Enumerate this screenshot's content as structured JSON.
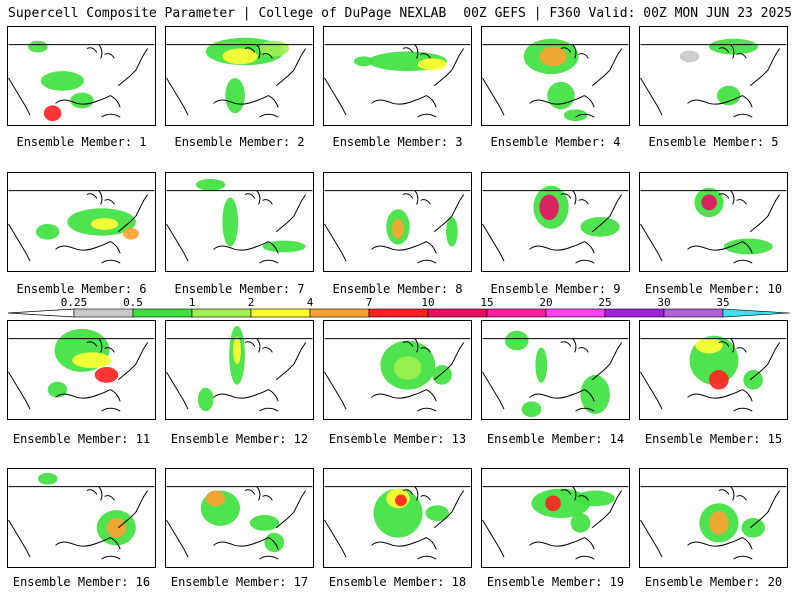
{
  "header": {
    "left_title": "Supercell Composite Parameter | College of DuPage NEXLAB",
    "right_title": "00Z GEFS | F360 Valid: 00Z MON JUN 23 2025"
  },
  "caption_prefix": "Ensemble Member: ",
  "colors": {
    "0.25": "#c8c8c8",
    "0.5": "#3de03d",
    "1": "#a0f050",
    "2": "#ffff33",
    "4": "#ffa030",
    "7": "#ff2020",
    "10": "#e81060",
    "15": "#ff20a0",
    "20": "#ff40ff",
    "25": "#a020e0",
    "30": "#b060d8",
    "35": "#40e0f0"
  },
  "legend": {
    "labels": [
      "0.25",
      "0.5",
      "1",
      "2",
      "4",
      "7",
      "10",
      "15",
      "20",
      "25",
      "30",
      "35"
    ],
    "colors": [
      "#c8c8c8",
      "#3de03d",
      "#a0f050",
      "#ffff33",
      "#ffa030",
      "#ff2020",
      "#e81060",
      "#ff20a0",
      "#ff40ff",
      "#a020e0",
      "#b060d8",
      "#40e0f0"
    ]
  },
  "members": [
    {
      "label": "1",
      "blobs": [
        [
          30,
          20,
          10,
          6,
          "#3de03d"
        ],
        [
          55,
          55,
          22,
          10,
          "#3de03d"
        ],
        [
          45,
          88,
          9,
          8,
          "#ff2020"
        ],
        [
          75,
          75,
          12,
          8,
          "#3de03d"
        ]
      ]
    },
    {
      "label": "2",
      "blobs": [
        [
          80,
          25,
          40,
          14,
          "#3de03d"
        ],
        [
          75,
          30,
          18,
          8,
          "#ffff33"
        ],
        [
          70,
          70,
          10,
          18,
          "#3de03d"
        ],
        [
          110,
          22,
          15,
          8,
          "#a0f050"
        ]
      ]
    },
    {
      "label": "3",
      "blobs": [
        [
          85,
          35,
          40,
          10,
          "#3de03d"
        ],
        [
          110,
          38,
          15,
          6,
          "#ffff33"
        ],
        [
          40,
          35,
          10,
          5,
          "#3de03d"
        ]
      ]
    },
    {
      "label": "4",
      "blobs": [
        [
          70,
          30,
          28,
          18,
          "#3de03d"
        ],
        [
          72,
          30,
          14,
          10,
          "#ffa030"
        ],
        [
          80,
          70,
          14,
          14,
          "#3de03d"
        ],
        [
          95,
          90,
          12,
          6,
          "#3de03d"
        ]
      ]
    },
    {
      "label": "5",
      "blobs": [
        [
          95,
          20,
          25,
          8,
          "#3de03d"
        ],
        [
          90,
          70,
          12,
          10,
          "#3de03d"
        ],
        [
          50,
          30,
          10,
          6,
          "#c8c8c8"
        ]
      ]
    },
    {
      "label": "6",
      "blobs": [
        [
          95,
          50,
          35,
          14,
          "#3de03d"
        ],
        [
          98,
          52,
          14,
          6,
          "#ffff33"
        ],
        [
          40,
          60,
          12,
          8,
          "#3de03d"
        ],
        [
          125,
          62,
          8,
          6,
          "#ffa030"
        ]
      ]
    },
    {
      "label": "7",
      "blobs": [
        [
          45,
          12,
          15,
          6,
          "#3de03d"
        ],
        [
          65,
          50,
          8,
          25,
          "#3de03d"
        ],
        [
          120,
          75,
          22,
          6,
          "#3de03d"
        ]
      ]
    },
    {
      "label": "8",
      "blobs": [
        [
          75,
          55,
          12,
          18,
          "#3de03d"
        ],
        [
          75,
          57,
          6,
          10,
          "#ffa030"
        ],
        [
          130,
          60,
          6,
          15,
          "#3de03d"
        ]
      ]
    },
    {
      "label": "9",
      "blobs": [
        [
          70,
          35,
          18,
          22,
          "#3de03d"
        ],
        [
          68,
          35,
          10,
          13,
          "#e81060"
        ],
        [
          120,
          55,
          20,
          10,
          "#3de03d"
        ]
      ]
    },
    {
      "label": "10",
      "blobs": [
        [
          70,
          30,
          15,
          15,
          "#3de03d"
        ],
        [
          70,
          30,
          8,
          8,
          "#e81060"
        ],
        [
          110,
          75,
          25,
          8,
          "#3de03d"
        ]
      ]
    },
    {
      "label": "11",
      "blobs": [
        [
          75,
          30,
          28,
          22,
          "#3de03d"
        ],
        [
          85,
          40,
          20,
          8,
          "#ffff33"
        ],
        [
          100,
          55,
          12,
          8,
          "#ff2020"
        ],
        [
          50,
          70,
          10,
          8,
          "#3de03d"
        ]
      ]
    },
    {
      "label": "12",
      "blobs": [
        [
          72,
          35,
          8,
          30,
          "#3de03d"
        ],
        [
          72,
          30,
          4,
          14,
          "#ffff33"
        ],
        [
          40,
          80,
          8,
          12,
          "#3de03d"
        ]
      ]
    },
    {
      "label": "13",
      "blobs": [
        [
          85,
          45,
          28,
          25,
          "#3de03d"
        ],
        [
          85,
          48,
          14,
          12,
          "#a0f050"
        ],
        [
          120,
          55,
          10,
          10,
          "#3de03d"
        ]
      ]
    },
    {
      "label": "14",
      "blobs": [
        [
          35,
          20,
          12,
          10,
          "#3de03d"
        ],
        [
          60,
          45,
          6,
          18,
          "#3de03d"
        ],
        [
          115,
          75,
          15,
          20,
          "#3de03d"
        ],
        [
          50,
          90,
          10,
          8,
          "#3de03d"
        ]
      ]
    },
    {
      "label": "15",
      "blobs": [
        [
          75,
          40,
          25,
          25,
          "#3de03d"
        ],
        [
          70,
          25,
          14,
          8,
          "#ffff33"
        ],
        [
          80,
          60,
          10,
          10,
          "#ff2020"
        ],
        [
          115,
          60,
          10,
          10,
          "#3de03d"
        ]
      ]
    },
    {
      "label": "16",
      "blobs": [
        [
          110,
          60,
          20,
          18,
          "#3de03d"
        ],
        [
          110,
          60,
          10,
          10,
          "#ffa030"
        ],
        [
          40,
          10,
          10,
          6,
          "#3de03d"
        ]
      ]
    },
    {
      "label": "17",
      "blobs": [
        [
          55,
          40,
          20,
          18,
          "#3de03d"
        ],
        [
          50,
          30,
          10,
          8,
          "#ffa030"
        ],
        [
          100,
          55,
          15,
          8,
          "#3de03d"
        ],
        [
          110,
          75,
          10,
          10,
          "#3de03d"
        ]
      ]
    },
    {
      "label": "18",
      "blobs": [
        [
          75,
          45,
          25,
          25,
          "#3de03d"
        ],
        [
          75,
          30,
          12,
          10,
          "#ffff33"
        ],
        [
          78,
          32,
          6,
          6,
          "#ff2020"
        ],
        [
          115,
          45,
          12,
          8,
          "#3de03d"
        ]
      ]
    },
    {
      "label": "19",
      "blobs": [
        [
          80,
          35,
          30,
          15,
          "#3de03d"
        ],
        [
          72,
          35,
          8,
          8,
          "#ff2020"
        ],
        [
          115,
          30,
          20,
          8,
          "#3de03d"
        ],
        [
          100,
          55,
          10,
          10,
          "#3de03d"
        ]
      ]
    },
    {
      "label": "20",
      "blobs": [
        [
          80,
          55,
          20,
          20,
          "#3de03d"
        ],
        [
          80,
          55,
          10,
          12,
          "#ffa030"
        ],
        [
          115,
          60,
          12,
          10,
          "#3de03d"
        ]
      ]
    }
  ]
}
